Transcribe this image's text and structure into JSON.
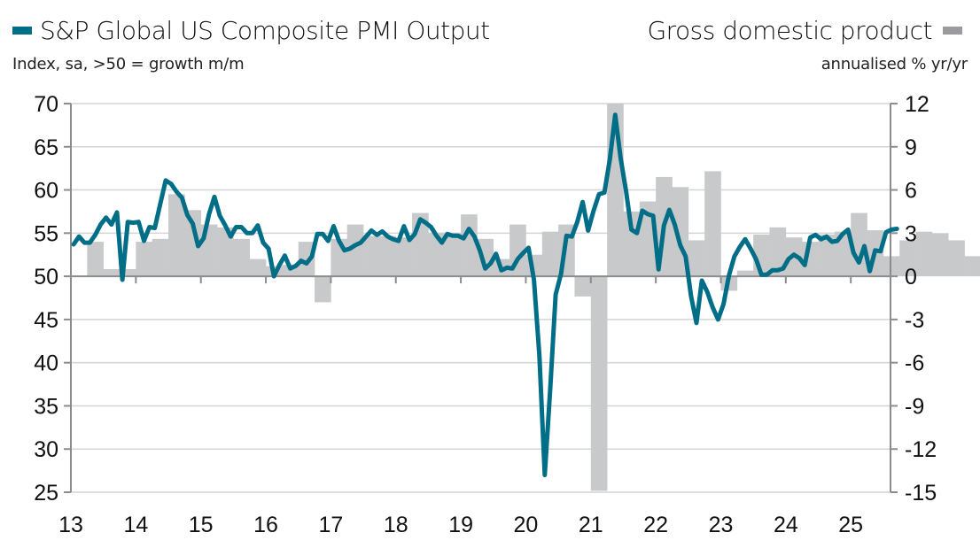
{
  "legend": {
    "left_title": "S&P Global US Composite PMI Output",
    "left_subtitle": "Index, sa, >50 = growth m/m",
    "right_title": "Gross domestic product",
    "right_subtitle": "annualised % yr/yr",
    "left_color": "#006e87",
    "right_color": "#c8c9cb"
  },
  "chart_data": {
    "type": "line+bar",
    "title": "S&P Global US Composite PMI Output vs Gross domestic product",
    "grid": true,
    "x_ticks": [
      "13",
      "14",
      "15",
      "16",
      "17",
      "18",
      "19",
      "20",
      "21",
      "22",
      "23",
      "24",
      "25"
    ],
    "left_axis": {
      "label": "Index, sa, >50 = growth m/m",
      "ylim": [
        25,
        70
      ],
      "ticks": [
        70,
        65,
        60,
        55,
        50,
        45,
        40,
        35,
        30,
        25
      ]
    },
    "right_axis": {
      "label": "annualised % yr/yr",
      "ylim": [
        -15,
        12
      ],
      "ticks": [
        12,
        9,
        6,
        3,
        0,
        -3,
        -6,
        -9,
        -12,
        -15
      ]
    },
    "series": [
      {
        "name": "S&P Global US Composite PMI Output",
        "type": "line",
        "axis": "left",
        "start": "2013-01",
        "frequency": "monthly",
        "color": "#006e87",
        "values": [
          53.7,
          54.6,
          53.9,
          53.9,
          54.8,
          56.0,
          56.8,
          56.0,
          57.4,
          49.6,
          56.3,
          56.2,
          56.3,
          54.1,
          55.7,
          55.6,
          58.4,
          61.1,
          60.7,
          59.8,
          59.1,
          57.1,
          56.1,
          53.5,
          54.4,
          57.2,
          59.2,
          57.0,
          55.9,
          54.6,
          55.7,
          55.7,
          55.0,
          55.0,
          55.9,
          53.9,
          53.2,
          50.0,
          51.3,
          52.4,
          50.9,
          51.2,
          51.8,
          51.5,
          52.3,
          54.9,
          54.9,
          54.1,
          55.8,
          54.1,
          53.0,
          53.2,
          53.6,
          53.9,
          54.6,
          55.3,
          54.8,
          55.2,
          54.6,
          54.3,
          54.1,
          55.8,
          54.2,
          54.9,
          56.6,
          56.2,
          55.7,
          54.7,
          53.9,
          54.9,
          54.7,
          54.7,
          54.4,
          55.5,
          54.6,
          53.0,
          50.9,
          51.5,
          52.6,
          50.7,
          51.0,
          50.9,
          52.0,
          52.7,
          53.3,
          49.6,
          40.9,
          27.0,
          37.0,
          47.9,
          50.3,
          54.7,
          54.6,
          56.3,
          58.6,
          55.3,
          57.6,
          59.5,
          59.7,
          63.5,
          68.7,
          63.7,
          59.9,
          55.4,
          55.0,
          57.6,
          57.2,
          57.0,
          50.8,
          55.9,
          57.7,
          56.0,
          53.6,
          52.3,
          47.7,
          44.6,
          49.5,
          48.2,
          46.4,
          45.0,
          46.8,
          50.1,
          52.3,
          53.4,
          54.3,
          53.2,
          52.0,
          50.2,
          50.2,
          50.7,
          50.7,
          50.9,
          52.0,
          52.5,
          52.1,
          51.3,
          54.5,
          54.8,
          54.3,
          54.6,
          54.0,
          54.1,
          54.9,
          55.4,
          52.7,
          51.6,
          53.5,
          50.6,
          53.0,
          52.9,
          55.1,
          55.4,
          55.5
        ]
      },
      {
        "name": "Gross domestic product",
        "type": "bar",
        "axis": "right",
        "start": "2013-Q1",
        "frequency": "quarterly",
        "color": "#c8c9cb",
        "values": [
          0.0,
          2.4,
          0.5,
          0.5,
          2.4,
          2.6,
          5.7,
          4.6,
          3.6,
          3.4,
          2.6,
          1.2,
          0.7,
          0.8,
          2.4,
          -1.8,
          2.6,
          3.6,
          2.8,
          2.8,
          2.7,
          4.4,
          3.0,
          3.0,
          4.3,
          2.6,
          1.2,
          3.6,
          1.5,
          3.1,
          3.6,
          -1.4,
          -14.9,
          12.0,
          4.5,
          5.2,
          6.9,
          6.2,
          2.5,
          7.3,
          -1.0,
          0.4,
          2.9,
          3.4,
          2.7,
          2.4,
          2.9,
          3.1,
          4.4,
          3.2,
          1.4,
          2.5,
          3.1,
          3.0,
          2.5,
          1.4,
          -0.6,
          3.0,
          3.2
        ]
      }
    ]
  }
}
